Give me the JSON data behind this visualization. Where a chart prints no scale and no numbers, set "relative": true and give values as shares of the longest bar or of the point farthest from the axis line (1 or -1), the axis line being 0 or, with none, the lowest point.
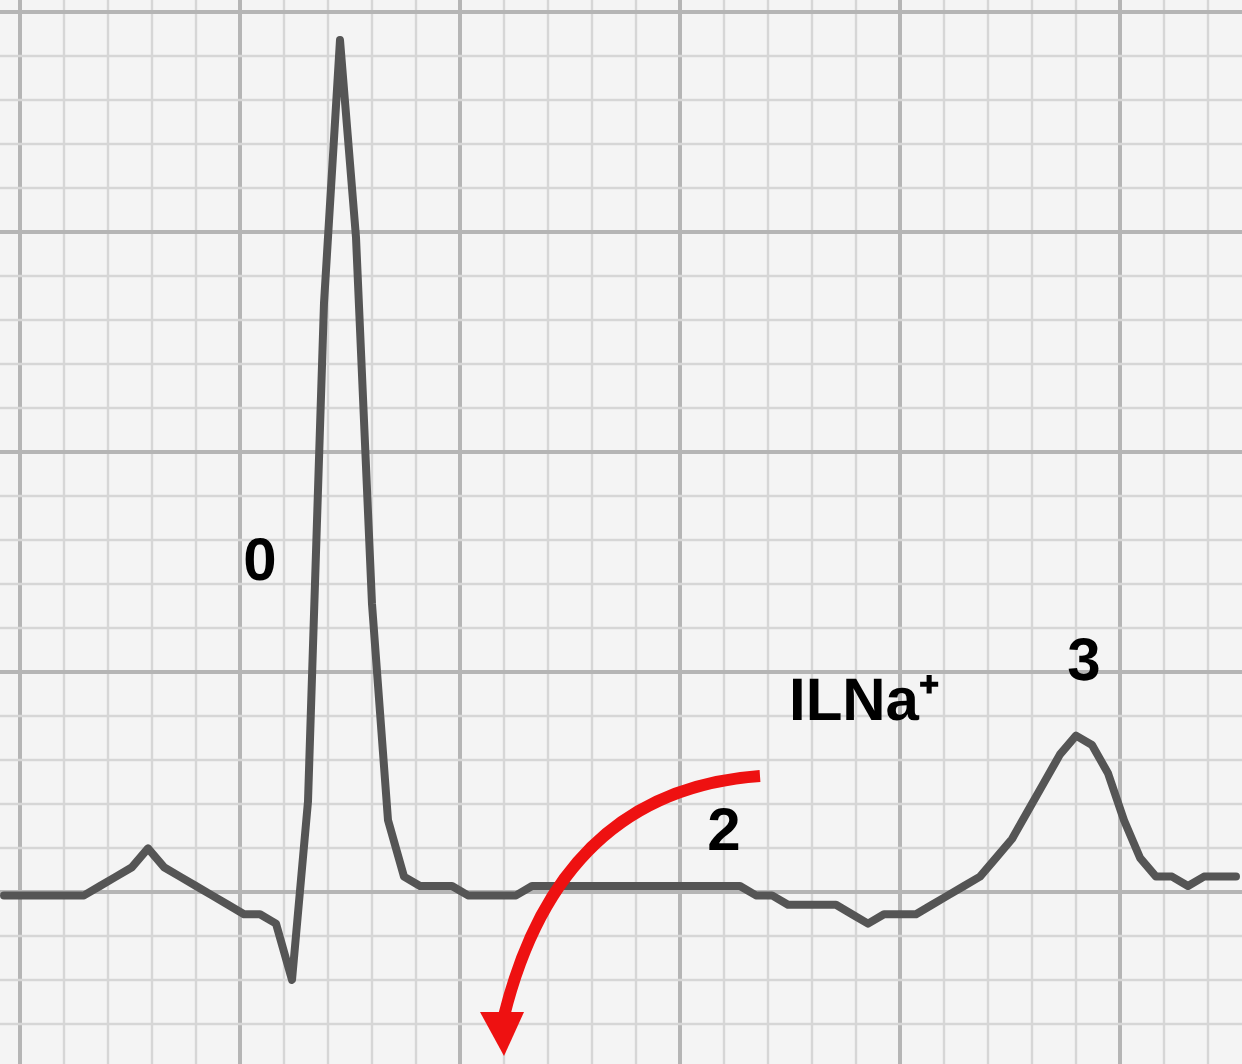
{
  "chart_data": {
    "type": "line",
    "relative": true,
    "grid": true,
    "categories": [
      null,
      null,
      null,
      null,
      null,
      null,
      null,
      null,
      null,
      null,
      null,
      null,
      null,
      null,
      null,
      null,
      null,
      null,
      null,
      null,
      null,
      null,
      null,
      null,
      null,
      null,
      null,
      null,
      null,
      null,
      null,
      null,
      null,
      null,
      null,
      null,
      null,
      null,
      null,
      null,
      null,
      null,
      null,
      null,
      null,
      null,
      null,
      null,
      null,
      null,
      null,
      null,
      null,
      null,
      null,
      null,
      null,
      null,
      null,
      null,
      null,
      null,
      null,
      null,
      null,
      null,
      null,
      null,
      null,
      null,
      null,
      null,
      null,
      null,
      null,
      null,
      null,
      null
    ],
    "series": [
      {
        "color": "#555555",
        "values": [
          0.09,
          0.09,
          0.09,
          0.09,
          0.09,
          0.09,
          0.1,
          0.11,
          0.12,
          0.14,
          0.12,
          0.11,
          0.1,
          0.09,
          0.08,
          0.07,
          0.07,
          0.06,
          0,
          0.19,
          0.72,
          1,
          0.79,
          0.4,
          0.17,
          0.11,
          0.1,
          0.1,
          0.1,
          0.09,
          0.09,
          0.09,
          0.09,
          0.1,
          0.1,
          0.1,
          0.1,
          0.1,
          0.1,
          0.1,
          0.1,
          0.1,
          0.1,
          0.1,
          0.1,
          0.1,
          0.1,
          0.09,
          0.09,
          0.08,
          0.08,
          0.08,
          0.08,
          0.07,
          0.06,
          0.07,
          0.07,
          0.07,
          0.08,
          0.09,
          0.1,
          0.11,
          0.13,
          0.15,
          0.18,
          0.21,
          0.24,
          0.26,
          0.25,
          0.22,
          0.17,
          0.13,
          0.11,
          0.11,
          0.1,
          0.11,
          0.11,
          0.11
        ]
      }
    ],
    "annotations": [
      "0",
      "ILNa⁺",
      "3",
      "2"
    ]
  }
}
